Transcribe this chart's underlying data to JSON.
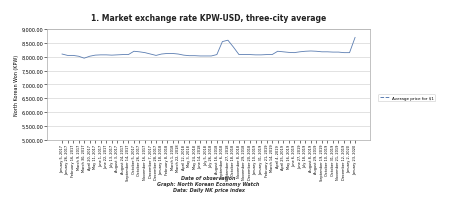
{
  "title": "1. Market exchange rate KPW-USD, three-city average",
  "ylabel": "North Korean Won (KPW)",
  "xlabel_note": "Date of observation\nGraph: North Korean Economy Watch\nData: Daily NK price index",
  "legend_label": "Average price for $1",
  "ylim": [
    5000.0,
    9000.0
  ],
  "yticks": [
    5000.0,
    5500.0,
    6000.0,
    6500.0,
    7000.0,
    7500.0,
    8000.0,
    8500.0,
    9000.0
  ],
  "line_color": "#5b7db1",
  "bg_color": "#ffffff",
  "x_labels": [
    "January 5, 2017",
    "January 26, 2017",
    "February 16, 2017",
    "March 9, 2017",
    "March 30, 2017",
    "April 20, 2017",
    "May 11, 2017",
    "June 1, 2017",
    "June 22, 2017",
    "July 13, 2017",
    "August 3, 2017",
    "August 24, 2017",
    "September 14, 2017",
    "October 5, 2017",
    "October 26, 2017",
    "November 16, 2017",
    "December 7, 2017",
    "December 28, 2017",
    "January 18, 2018",
    "February 8, 2018",
    "March 1, 2018",
    "March 22, 2018",
    "April 12, 2018",
    "May 3, 2018",
    "May 24, 2018",
    "June 14, 2018",
    "July 5, 2018",
    "July 26, 2018",
    "August 16, 2018",
    "September 6, 2018",
    "September 27, 2018",
    "October 18, 2018",
    "November 8, 2018",
    "November 29, 2018",
    "December 20, 2018",
    "January 10, 2019",
    "January 31, 2019",
    "February 21, 2019",
    "March 14, 2019",
    "April 4, 2019",
    "April 25, 2019",
    "May 16, 2019",
    "June 6, 2019",
    "June 27, 2019",
    "July 18, 2019",
    "August 8, 2019",
    "August 29, 2019",
    "September 19, 2019",
    "October 10, 2019",
    "October 31, 2019",
    "November 21, 2019",
    "December 12, 2019",
    "January 2, 2020",
    "January 23, 2020"
  ],
  "y_values": [
    8100,
    8050,
    8050,
    8020,
    7950,
    8020,
    8060,
    8070,
    8070,
    8060,
    8070,
    8080,
    8080,
    8200,
    8180,
    8150,
    8100,
    8050,
    8100,
    8120,
    8120,
    8100,
    8060,
    8040,
    8040,
    8030,
    8030,
    8030,
    8080,
    8550,
    8600,
    8350,
    8080,
    8080,
    8080,
    8070,
    8070,
    8080,
    8080,
    8200,
    8180,
    8160,
    8150,
    8180,
    8200,
    8210,
    8200,
    8180,
    8180,
    8170,
    8170,
    8150,
    8150,
    8700
  ]
}
